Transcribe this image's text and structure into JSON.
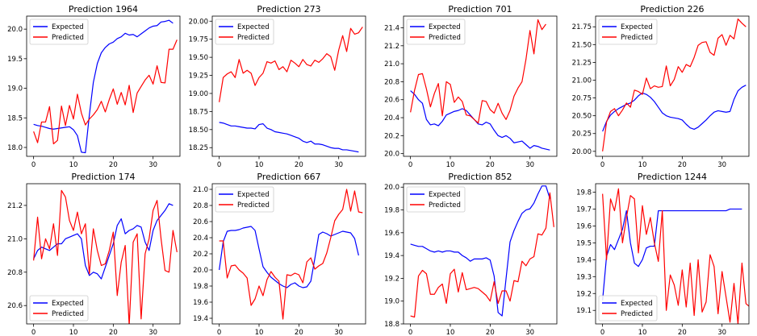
{
  "chart_data": [
    {
      "type": "line",
      "title": "Prediction 1964",
      "xlim": [
        -1.75,
        36.75
      ],
      "ylim": [
        17.85,
        20.22
      ],
      "xticks": [
        0,
        10,
        20,
        30
      ],
      "yticks": [
        18.0,
        18.5,
        19.0,
        19.5,
        20.0
      ],
      "ytick_labels": [
        "18.0",
        "18.5",
        "19.0",
        "19.5",
        "20.0"
      ],
      "legend": "top-left",
      "series": [
        {
          "name": "Expected",
          "color": "#0000ff",
          "values": [
            18.39,
            18.37,
            18.36,
            18.34,
            18.32,
            18.31,
            18.32,
            18.33,
            18.34,
            18.35,
            18.3,
            18.2,
            17.92,
            17.91,
            18.55,
            19.1,
            19.42,
            19.6,
            19.69,
            19.75,
            19.78,
            19.84,
            19.87,
            19.93,
            19.9,
            19.91,
            19.87,
            19.92,
            19.97,
            20.02,
            20.05,
            20.06,
            20.12,
            20.13,
            20.15,
            20.1
          ]
        },
        {
          "name": "Predicted",
          "color": "#ff0000",
          "values": [
            18.27,
            18.08,
            18.43,
            18.43,
            18.69,
            18.06,
            18.12,
            18.7,
            18.37,
            18.71,
            18.48,
            18.9,
            18.58,
            18.38,
            18.48,
            18.55,
            18.64,
            18.78,
            18.6,
            18.81,
            18.99,
            18.73,
            18.93,
            18.72,
            19.05,
            18.59,
            18.92,
            19.03,
            19.14,
            19.22,
            19.07,
            19.38,
            19.1,
            19.09,
            19.66,
            19.66,
            19.82
          ]
        }
      ]
    },
    {
      "type": "line",
      "title": "Prediction 273",
      "xlim": [
        -1.75,
        36.75
      ],
      "ylim": [
        18.13,
        20.07
      ],
      "xticks": [
        0,
        10,
        20,
        30
      ],
      "yticks": [
        18.25,
        18.5,
        18.75,
        19.0,
        19.25,
        19.5,
        19.75,
        20.0
      ],
      "ytick_labels": [
        "18.25",
        "18.50",
        "18.75",
        "19.00",
        "19.25",
        "19.50",
        "19.75",
        "20.00"
      ],
      "legend": "top-left",
      "series": [
        {
          "name": "Expected",
          "color": "#0000ff",
          "values": [
            18.6,
            18.59,
            18.57,
            18.55,
            18.55,
            18.54,
            18.53,
            18.52,
            18.52,
            18.51,
            18.57,
            18.58,
            18.52,
            18.5,
            18.47,
            18.46,
            18.45,
            18.44,
            18.42,
            18.4,
            18.38,
            18.34,
            18.32,
            18.34,
            18.3,
            18.3,
            18.29,
            18.27,
            18.25,
            18.24,
            18.24,
            18.22,
            18.22,
            18.21,
            18.2,
            18.19
          ]
        },
        {
          "name": "Predicted",
          "color": "#ff0000",
          "values": [
            18.88,
            19.22,
            19.27,
            19.3,
            19.22,
            19.47,
            19.28,
            19.32,
            19.28,
            19.11,
            19.22,
            19.28,
            19.44,
            19.42,
            19.45,
            19.33,
            19.37,
            19.3,
            19.46,
            19.42,
            19.37,
            19.47,
            19.4,
            19.38,
            19.46,
            19.43,
            19.48,
            19.55,
            19.51,
            19.32,
            19.6,
            19.8,
            19.58,
            19.9,
            19.82,
            19.84,
            19.92
          ]
        }
      ]
    },
    {
      "type": "line",
      "title": "Prediction 701",
      "xlim": [
        -1.75,
        36.75
      ],
      "ylim": [
        19.97,
        21.53
      ],
      "xticks": [
        0,
        10,
        20,
        30
      ],
      "yticks": [
        20.0,
        20.2,
        20.4,
        20.6,
        20.8,
        21.0,
        21.2,
        21.4
      ],
      "ytick_labels": [
        "20.0",
        "20.2",
        "20.4",
        "20.6",
        "20.8",
        "21.0",
        "21.2",
        "21.4"
      ],
      "legend": "top-left",
      "series": [
        {
          "name": "Expected",
          "color": "#0000ff",
          "values": [
            20.7,
            20.66,
            20.6,
            20.56,
            20.38,
            20.32,
            20.33,
            20.31,
            20.36,
            20.43,
            20.45,
            20.47,
            20.48,
            20.5,
            20.48,
            20.43,
            20.38,
            20.33,
            20.32,
            20.35,
            20.33,
            20.26,
            20.2,
            20.18,
            20.2,
            20.17,
            20.12,
            20.13,
            20.14,
            20.1,
            20.06,
            20.09,
            20.08,
            20.06,
            20.05,
            20.04
          ]
        },
        {
          "name": "Predicted",
          "color": "#ff0000",
          "values": [
            20.46,
            20.7,
            20.88,
            20.89,
            20.72,
            20.52,
            20.67,
            20.78,
            20.42,
            20.8,
            20.77,
            20.57,
            20.63,
            20.58,
            20.43,
            20.42,
            20.38,
            20.34,
            20.59,
            20.58,
            20.49,
            20.45,
            20.56,
            20.45,
            20.38,
            20.48,
            20.64,
            20.73,
            20.8,
            21.05,
            21.37,
            21.11,
            21.49,
            21.38,
            21.44
          ]
        }
      ]
    },
    {
      "type": "line",
      "title": "Prediction 226",
      "xlim": [
        -1.75,
        36.75
      ],
      "ylim": [
        19.93,
        21.9
      ],
      "xticks": [
        0,
        10,
        20,
        30
      ],
      "yticks": [
        20.0,
        20.25,
        20.5,
        20.75,
        21.0,
        21.25,
        21.5,
        21.75
      ],
      "ytick_labels": [
        "20.00",
        "20.25",
        "20.50",
        "20.75",
        "21.00",
        "21.25",
        "21.50",
        "21.75"
      ],
      "legend": "top-left",
      "series": [
        {
          "name": "Expected",
          "color": "#0000ff",
          "values": [
            20.28,
            20.42,
            20.51,
            20.56,
            20.6,
            20.63,
            20.66,
            20.68,
            20.72,
            20.78,
            20.82,
            20.8,
            20.76,
            20.7,
            20.62,
            20.54,
            20.5,
            20.48,
            20.47,
            20.46,
            20.44,
            20.38,
            20.33,
            20.31,
            20.34,
            20.39,
            20.44,
            20.5,
            20.55,
            20.57,
            20.56,
            20.55,
            20.56,
            20.73,
            20.85,
            20.9,
            20.93
          ]
        },
        {
          "name": "Predicted",
          "color": "#ff0000",
          "values": [
            20.0,
            20.41,
            20.56,
            20.6,
            20.5,
            20.58,
            20.68,
            20.62,
            20.86,
            20.84,
            20.8,
            21.03,
            20.88,
            20.92,
            20.9,
            20.91,
            21.2,
            20.92,
            21.01,
            21.19,
            21.11,
            21.22,
            21.19,
            21.32,
            21.49,
            21.53,
            21.54,
            21.39,
            21.35,
            21.59,
            21.64,
            21.49,
            21.63,
            21.58,
            21.86,
            21.8,
            21.75
          ]
        }
      ]
    },
    {
      "type": "line",
      "title": "Prediction 174",
      "xlim": [
        -1.75,
        36.75
      ],
      "ylim": [
        20.49,
        21.33
      ],
      "xticks": [
        0,
        10,
        20,
        30
      ],
      "yticks": [
        20.6,
        20.8,
        21.0,
        21.2
      ],
      "ytick_labels": [
        "20.6",
        "20.8",
        "21.0",
        "21.2"
      ],
      "legend": "bottom-left",
      "series": [
        {
          "name": "Expected",
          "color": "#0000ff",
          "values": [
            20.88,
            20.93,
            20.95,
            20.94,
            20.93,
            20.95,
            20.97,
            20.97,
            21.0,
            21.01,
            21.02,
            21.03,
            21.0,
            20.84,
            20.78,
            20.8,
            20.79,
            20.76,
            20.83,
            20.9,
            20.97,
            21.08,
            21.12,
            21.03,
            21.05,
            21.06,
            21.08,
            21.07,
            20.98,
            20.93,
            21.05,
            21.11,
            21.14,
            21.17,
            21.21,
            21.2
          ]
        },
        {
          "name": "Predicted",
          "color": "#ff0000",
          "values": [
            20.87,
            21.13,
            20.88,
            21.0,
            20.94,
            21.09,
            20.9,
            21.29,
            21.25,
            21.11,
            21.05,
            21.16,
            21.03,
            21.09,
            20.79,
            21.06,
            20.93,
            20.84,
            20.85,
            20.93,
            21.04,
            20.66,
            20.86,
            20.96,
            20.48,
            20.98,
            21.03,
            20.52,
            20.91,
            21.0,
            21.17,
            21.23,
            21.0,
            20.81,
            20.8,
            21.05,
            20.92
          ]
        }
      ]
    },
    {
      "type": "line",
      "title": "Prediction 667",
      "xlim": [
        -1.75,
        36.75
      ],
      "ylim": [
        19.33,
        21.07
      ],
      "xticks": [
        0,
        10,
        20,
        30
      ],
      "yticks": [
        19.4,
        19.6,
        19.8,
        20.0,
        20.2,
        20.4,
        20.6,
        20.8,
        21.0
      ],
      "ytick_labels": [
        "19.4",
        "19.6",
        "19.8",
        "20.0",
        "20.2",
        "20.4",
        "20.6",
        "20.8",
        "21.0"
      ],
      "legend": "top-left",
      "series": [
        {
          "name": "Expected",
          "color": "#0000ff",
          "values": [
            20.0,
            20.35,
            20.48,
            20.49,
            20.49,
            20.5,
            20.52,
            20.53,
            20.54,
            20.49,
            20.26,
            20.04,
            19.97,
            19.91,
            19.87,
            19.83,
            19.8,
            19.78,
            19.82,
            19.84,
            19.8,
            19.78,
            19.79,
            19.86,
            20.14,
            20.44,
            20.47,
            20.45,
            20.42,
            20.44,
            20.46,
            20.48,
            20.47,
            20.46,
            20.39,
            20.18
          ]
        },
        {
          "name": "Predicted",
          "color": "#ff0000",
          "values": [
            20.36,
            20.36,
            19.9,
            20.05,
            20.06,
            20.0,
            19.96,
            19.9,
            19.56,
            19.64,
            19.8,
            19.68,
            19.88,
            19.98,
            19.91,
            19.86,
            19.39,
            19.94,
            19.93,
            19.96,
            19.94,
            19.84,
            20.1,
            20.15,
            20.01,
            20.05,
            20.08,
            20.21,
            20.4,
            20.61,
            20.69,
            20.75,
            21.0,
            20.73,
            20.98,
            20.72,
            20.71
          ]
        }
      ]
    },
    {
      "type": "line",
      "title": "Prediction 852",
      "xlim": [
        -1.75,
        36.75
      ],
      "ylim": [
        18.8,
        20.03
      ],
      "xticks": [
        0,
        10,
        20,
        30
      ],
      "yticks": [
        18.8,
        19.0,
        19.2,
        19.4,
        19.6,
        19.8,
        20.0
      ],
      "ytick_labels": [
        "18.8",
        "19.0",
        "19.2",
        "19.4",
        "19.6",
        "19.8",
        "20.0"
      ],
      "legend": "top-left",
      "series": [
        {
          "name": "Expected",
          "color": "#0000ff",
          "values": [
            19.5,
            19.49,
            19.48,
            19.48,
            19.46,
            19.44,
            19.43,
            19.44,
            19.43,
            19.44,
            19.44,
            19.43,
            19.43,
            19.4,
            19.38,
            19.35,
            19.37,
            19.37,
            19.37,
            19.38,
            19.36,
            19.22,
            18.9,
            18.87,
            19.2,
            19.52,
            19.62,
            19.7,
            19.77,
            19.8,
            19.81,
            19.86,
            19.94,
            20.01,
            20.01,
            19.9
          ]
        },
        {
          "name": "Predicted",
          "color": "#ff0000",
          "values": [
            18.87,
            18.86,
            19.22,
            19.27,
            19.24,
            19.06,
            19.06,
            19.12,
            19.15,
            18.98,
            19.24,
            19.28,
            19.08,
            19.25,
            19.1,
            19.11,
            19.12,
            19.11,
            19.08,
            19.05,
            19.0,
            19.17,
            18.98,
            19.09,
            19.09,
            19.0,
            19.18,
            19.17,
            19.35,
            19.31,
            19.37,
            19.39,
            19.59,
            19.58,
            19.64,
            19.95,
            19.65
          ]
        }
      ]
    },
    {
      "type": "line",
      "title": "Prediction 1244",
      "xlim": [
        -1.75,
        36.75
      ],
      "ylim": [
        19.02,
        19.85
      ],
      "xticks": [
        0,
        10,
        20,
        30
      ],
      "yticks": [
        19.1,
        19.2,
        19.3,
        19.4,
        19.5,
        19.6,
        19.7,
        19.8
      ],
      "ytick_labels": [
        "19.1",
        "19.2",
        "19.3",
        "19.4",
        "19.5",
        "19.6",
        "19.7",
        "19.8"
      ],
      "legend": "bottom-left",
      "series": [
        {
          "name": "Expected",
          "color": "#0000ff",
          "values": [
            19.16,
            19.42,
            19.49,
            19.46,
            19.52,
            19.58,
            19.69,
            19.5,
            19.38,
            19.36,
            19.4,
            19.47,
            19.48,
            19.48,
            19.69,
            19.69,
            19.69,
            19.69,
            19.69,
            19.69,
            19.69,
            19.69,
            19.69,
            19.69,
            19.69,
            19.69,
            19.69,
            19.69,
            19.69,
            19.69,
            19.69,
            19.69,
            19.7,
            19.7,
            19.7,
            19.7
          ]
        },
        {
          "name": "Predicted",
          "color": "#ff0000",
          "values": [
            19.79,
            19.4,
            19.76,
            19.69,
            19.82,
            19.5,
            19.65,
            19.78,
            19.76,
            19.44,
            19.72,
            19.55,
            19.65,
            19.5,
            19.39,
            19.69,
            19.1,
            19.31,
            19.25,
            19.13,
            19.34,
            19.12,
            19.38,
            19.07,
            19.4,
            19.09,
            19.15,
            19.43,
            19.36,
            19.08,
            19.33,
            19.18,
            19.03,
            19.26,
            19.02,
            19.38,
            19.14,
            19.12,
            19.48,
            19.26
          ]
        }
      ]
    }
  ]
}
